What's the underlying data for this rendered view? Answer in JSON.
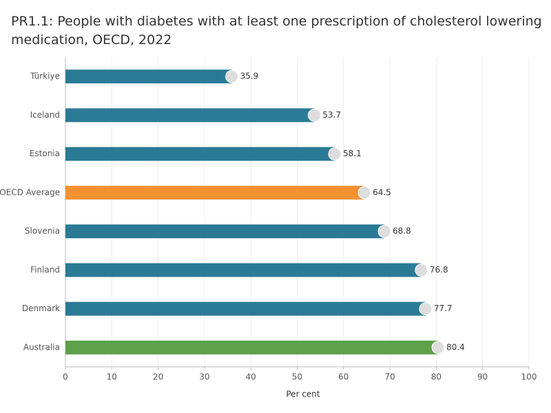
{
  "chart_data": {
    "type": "bar",
    "orientation": "horizontal",
    "title": "PR1.1: People with diabetes with at least one prescription of cholesterol lowering medication, OECD, 2022",
    "x_label": "Per cent",
    "categories": [
      "Türkiye",
      "Iceland",
      "Estonia",
      "OECD Average",
      "Slovenia",
      "Finland",
      "Denmark",
      "Australia"
    ],
    "values": [
      35.9,
      53.7,
      58.1,
      64.5,
      68.8,
      76.8,
      77.7,
      80.4
    ],
    "colors": [
      "#2b7a95",
      "#2b7a95",
      "#2b7a95",
      "#f39131",
      "#2b7a95",
      "#2b7a95",
      "#2b7a95",
      "#5ca04a"
    ],
    "xlim": [
      0,
      100
    ],
    "xticks": [
      0,
      10,
      20,
      30,
      40,
      50,
      60,
      70,
      80,
      90,
      100
    ],
    "grid": true
  }
}
